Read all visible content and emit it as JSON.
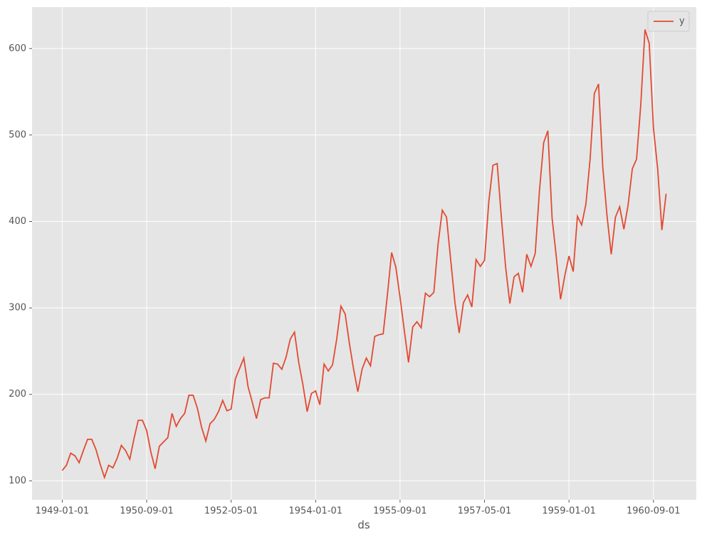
{
  "chart_data": {
    "type": "line",
    "xlabel": "ds",
    "x": [
      "1949-01-01",
      "1949-02-01",
      "1949-03-01",
      "1949-04-01",
      "1949-05-01",
      "1949-06-01",
      "1949-07-01",
      "1949-08-01",
      "1949-09-01",
      "1949-10-01",
      "1949-11-01",
      "1949-12-01",
      "1950-01-01",
      "1950-02-01",
      "1950-03-01",
      "1950-04-01",
      "1950-05-01",
      "1950-06-01",
      "1950-07-01",
      "1950-08-01",
      "1950-09-01",
      "1950-10-01",
      "1950-11-01",
      "1950-12-01",
      "1951-01-01",
      "1951-02-01",
      "1951-03-01",
      "1951-04-01",
      "1951-05-01",
      "1951-06-01",
      "1951-07-01",
      "1951-08-01",
      "1951-09-01",
      "1951-10-01",
      "1951-11-01",
      "1951-12-01",
      "1952-01-01",
      "1952-02-01",
      "1952-03-01",
      "1952-04-01",
      "1952-05-01",
      "1952-06-01",
      "1952-07-01",
      "1952-08-01",
      "1952-09-01",
      "1952-10-01",
      "1952-11-01",
      "1952-12-01",
      "1953-01-01",
      "1953-02-01",
      "1953-03-01",
      "1953-04-01",
      "1953-05-01",
      "1953-06-01",
      "1953-07-01",
      "1953-08-01",
      "1953-09-01",
      "1953-10-01",
      "1953-11-01",
      "1953-12-01",
      "1954-01-01",
      "1954-02-01",
      "1954-03-01",
      "1954-04-01",
      "1954-05-01",
      "1954-06-01",
      "1954-07-01",
      "1954-08-01",
      "1954-09-01",
      "1954-10-01",
      "1954-11-01",
      "1954-12-01",
      "1955-01-01",
      "1955-02-01",
      "1955-03-01",
      "1955-04-01",
      "1955-05-01",
      "1955-06-01",
      "1955-07-01",
      "1955-08-01",
      "1955-09-01",
      "1955-10-01",
      "1955-11-01",
      "1955-12-01",
      "1956-01-01",
      "1956-02-01",
      "1956-03-01",
      "1956-04-01",
      "1956-05-01",
      "1956-06-01",
      "1956-07-01",
      "1956-08-01",
      "1956-09-01",
      "1956-10-01",
      "1956-11-01",
      "1956-12-01",
      "1957-01-01",
      "1957-02-01",
      "1957-03-01",
      "1957-04-01",
      "1957-05-01",
      "1957-06-01",
      "1957-07-01",
      "1957-08-01",
      "1957-09-01",
      "1957-10-01",
      "1957-11-01",
      "1957-12-01",
      "1958-01-01",
      "1958-02-01",
      "1958-03-01",
      "1958-04-01",
      "1958-05-01",
      "1958-06-01",
      "1958-07-01",
      "1958-08-01",
      "1958-09-01",
      "1958-10-01",
      "1958-11-01",
      "1958-12-01",
      "1959-01-01",
      "1959-02-01",
      "1959-03-01",
      "1959-04-01",
      "1959-05-01",
      "1959-06-01",
      "1959-07-01",
      "1959-08-01",
      "1959-09-01",
      "1959-10-01",
      "1959-11-01",
      "1959-12-01",
      "1960-01-01",
      "1960-02-01",
      "1960-03-01",
      "1960-04-01",
      "1960-05-01",
      "1960-06-01",
      "1960-07-01",
      "1960-08-01",
      "1960-09-01",
      "1960-10-01",
      "1960-11-01",
      "1960-12-01"
    ],
    "series": [
      {
        "name": "y",
        "color": "#E24A33",
        "values": [
          112,
          118,
          132,
          129,
          121,
          135,
          148,
          148,
          136,
          119,
          104,
          118,
          115,
          126,
          141,
          135,
          125,
          149,
          170,
          170,
          158,
          133,
          114,
          140,
          145,
          150,
          178,
          163,
          172,
          178,
          199,
          199,
          184,
          162,
          146,
          166,
          171,
          180,
          193,
          181,
          183,
          218,
          230,
          242,
          209,
          191,
          172,
          194,
          196,
          196,
          236,
          235,
          229,
          243,
          264,
          272,
          237,
          211,
          180,
          201,
          204,
          188,
          235,
          227,
          234,
          264,
          302,
          293,
          259,
          229,
          203,
          229,
          242,
          233,
          267,
          269,
          270,
          315,
          364,
          347,
          312,
          274,
          237,
          278,
          284,
          277,
          317,
          313,
          318,
          374,
          413,
          405,
          355,
          306,
          271,
          306,
          315,
          301,
          356,
          348,
          355,
          422,
          465,
          467,
          404,
          347,
          305,
          336,
          340,
          318,
          362,
          348,
          363,
          435,
          491,
          505,
          404,
          359,
          310,
          337,
          360,
          342,
          406,
          396,
          420,
          472,
          548,
          559,
          463,
          407,
          362,
          405,
          417,
          391,
          419,
          461,
          472,
          535,
          622,
          606,
          508,
          461,
          390,
          432
        ]
      }
    ],
    "xticks": [
      "1949-01-01",
      "1950-09-01",
      "1952-05-01",
      "1954-01-01",
      "1955-09-01",
      "1957-05-01",
      "1959-01-01",
      "1960-09-01"
    ],
    "ylim": [
      78.1,
      647.9
    ],
    "yticks": [
      100,
      200,
      300,
      400,
      500,
      600
    ],
    "grid": true,
    "legend": "upper right"
  }
}
